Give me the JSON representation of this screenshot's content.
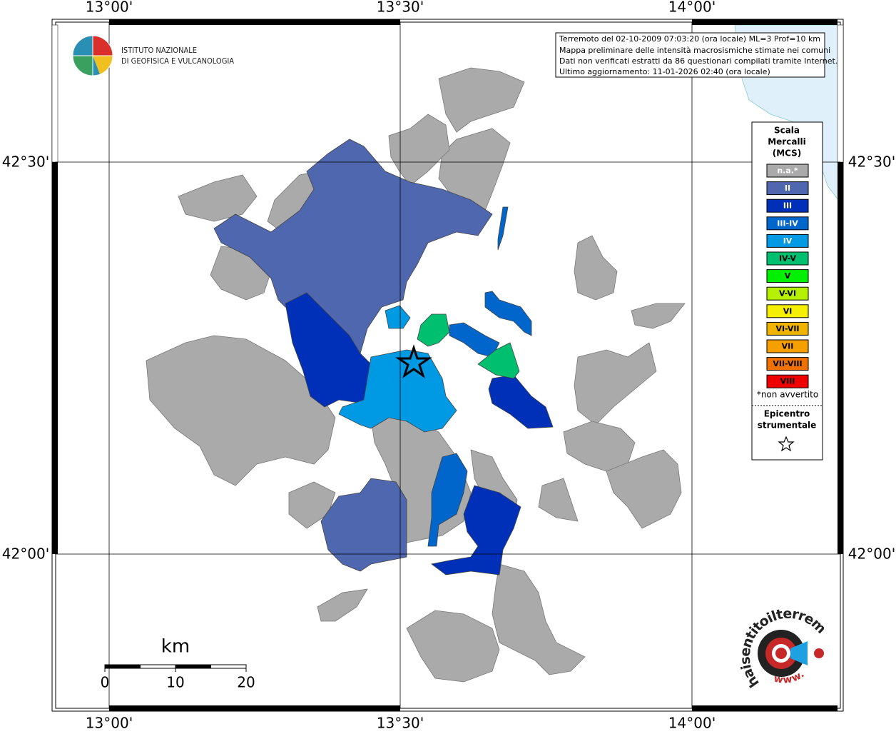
{
  "axis_labels": {
    "lon": [
      "13°00'",
      "13°30'",
      "14°00'"
    ],
    "lat": [
      "42°30'",
      "42°00'"
    ]
  },
  "logo": {
    "line1": "ISTITUTO NAZIONALE",
    "line2": "DI GEOFISICA E VULCANOLOGIA"
  },
  "info_box": [
    "Terremoto del 02-10-2009 07:03:20 (ora locale) ML=3 Prof=10 km",
    "Mappa preliminare delle intensità macrosismiche stimate nei comuni",
    "Dati non verificati estratti da 86 questionari compilati tramite Internet.",
    "Ultimo aggiornamento: 11-01-2026 02:40 (ora locale)"
  ],
  "legend": {
    "title": [
      "Scala",
      "Mercalli",
      "(MCS)"
    ],
    "items": [
      {
        "label": "n.a.*",
        "color": "#aaaaaa"
      },
      {
        "label": "II",
        "color": "#4f67ae"
      },
      {
        "label": "III",
        "color": "#0030b8"
      },
      {
        "label": "III-IV",
        "color": "#0066cc"
      },
      {
        "label": "IV",
        "color": "#0099e3"
      },
      {
        "label": "IV-V",
        "color": "#00c070"
      },
      {
        "label": "V",
        "color": "#00f000"
      },
      {
        "label": "V-VI",
        "color": "#b4f000"
      },
      {
        "label": "VI",
        "color": "#f5f000"
      },
      {
        "label": "VI-VII",
        "color": "#f0b400"
      },
      {
        "label": "VII",
        "color": "#f5a000"
      },
      {
        "label": "VII-VIII",
        "color": "#f07000"
      },
      {
        "label": "VIII",
        "color": "#f00000"
      }
    ],
    "note": "*non avvertito",
    "epicenter": [
      "Epicentro",
      "strumentale"
    ]
  },
  "scale_bar": {
    "unit": "km",
    "labels": [
      "0",
      "10",
      "20"
    ]
  },
  "badge": {
    "text": "haisentitoilterremoto.it",
    "www": "www."
  }
}
